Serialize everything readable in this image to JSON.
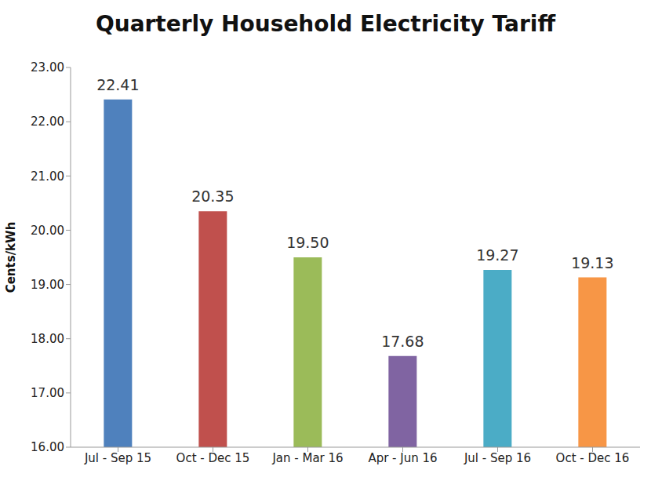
{
  "chart_data": {
    "type": "bar",
    "title": "Quarterly Household Electricity Tariff",
    "y_label": "Cents/kWh",
    "categories": [
      "Jul - Sep 15",
      "Oct - Dec 15",
      "Jan - Mar 16",
      "Apr - Jun 16",
      "Jul - Sep 16",
      "Oct - Dec 16"
    ],
    "values": [
      22.41,
      20.35,
      19.5,
      17.68,
      19.27,
      19.13
    ],
    "value_labels": [
      "22.41",
      "20.35",
      "19.50",
      "17.68",
      "19.27",
      "19.13"
    ],
    "colors": [
      "#4f81bd",
      "#c0504d",
      "#9bbb59",
      "#8064a2",
      "#4bacc6",
      "#f79646"
    ],
    "ylim": [
      16,
      23
    ],
    "yticks": [
      {
        "value": 16,
        "label": "16.00"
      },
      {
        "value": 17,
        "label": "17.00"
      },
      {
        "value": 18,
        "label": "18.00"
      },
      {
        "value": 19,
        "label": "19.00"
      },
      {
        "value": 20,
        "label": "20.00"
      },
      {
        "value": 21,
        "label": "21.00"
      },
      {
        "value": 22,
        "label": "22.00"
      },
      {
        "value": 23,
        "label": "23.00"
      }
    ],
    "grid": false,
    "data_labels": true
  }
}
